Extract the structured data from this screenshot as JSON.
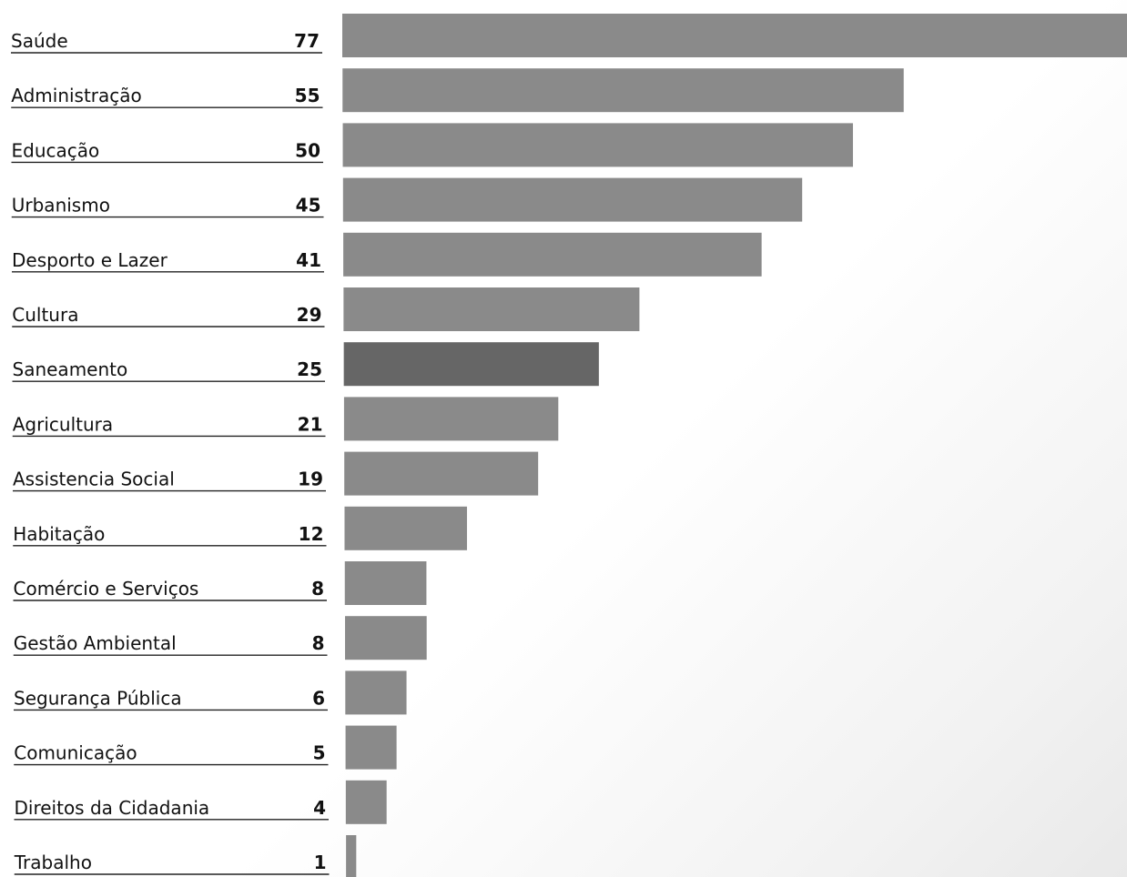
{
  "chart_data": {
    "type": "bar",
    "orientation": "horizontal",
    "title": "",
    "xlabel": "",
    "ylabel": "",
    "categories": [
      "Saúde",
      "Administração",
      "Educação",
      "Urbanismo",
      "Desporto e Lazer",
      "Cultura",
      "Saneamento",
      "Agricultura",
      "Assistencia Social",
      "Habitação",
      "Comércio e Serviços",
      "Gestão Ambiental",
      "Segurança Pública",
      "Comunicação",
      "Direitos da Cidadania",
      "Trabalho"
    ],
    "values": [
      77,
      55,
      50,
      45,
      41,
      29,
      25,
      21,
      19,
      12,
      8,
      8,
      6,
      5,
      4,
      1
    ],
    "xlim": [
      0,
      77
    ],
    "grid": false,
    "legend": "none",
    "bar_color": "#8a8a8a",
    "highlight_category": "Saneamento",
    "highlight_color": "#666666"
  }
}
